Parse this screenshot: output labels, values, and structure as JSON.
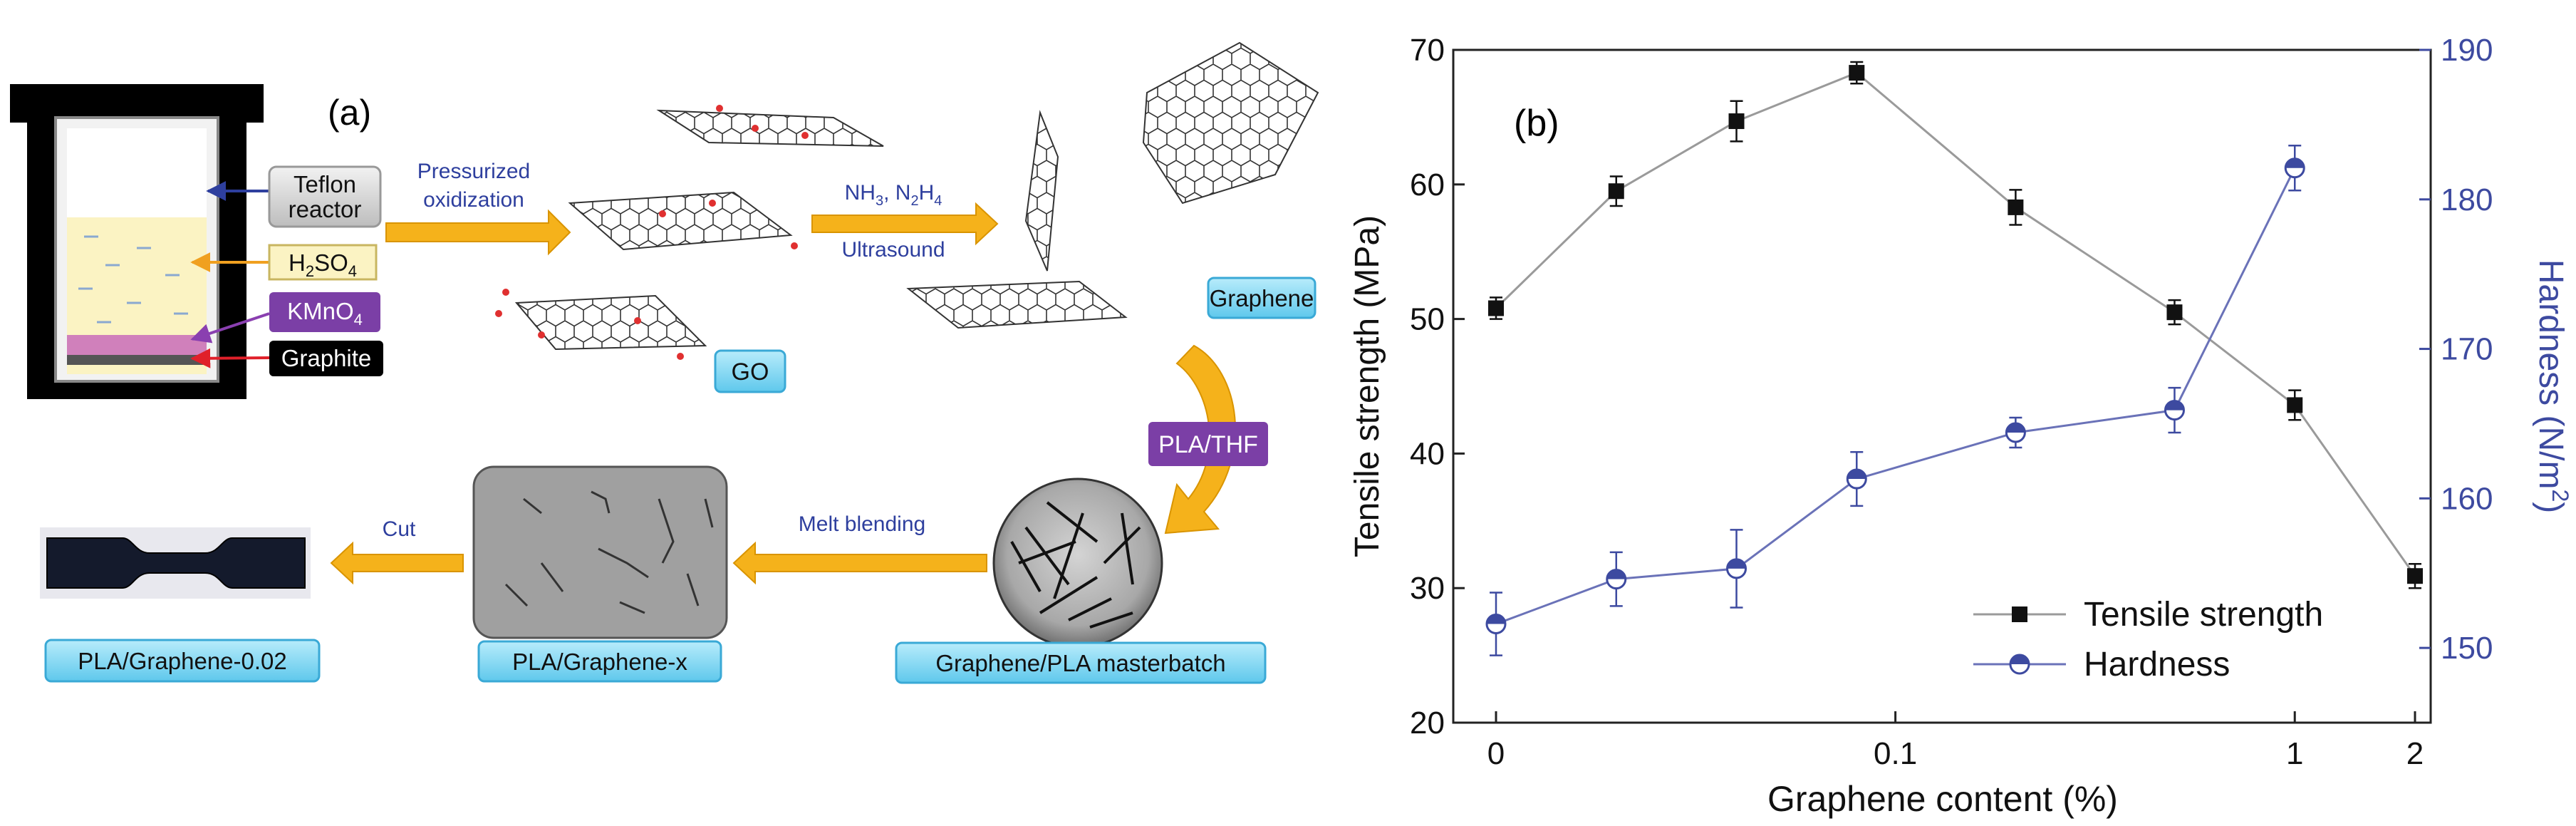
{
  "panel_a": {
    "label": "(a)",
    "reactor_labels": [
      "Teflon",
      "reactor"
    ],
    "h2so4": {
      "main": "H",
      "sub1": "2",
      "mid": "SO",
      "sub2": "4"
    },
    "kmno4": {
      "main": "KMnO",
      "sub": "4"
    },
    "graphite": "Graphite",
    "pressurized": [
      "Pressurized",
      "oxidization"
    ],
    "go": "GO",
    "reagents": {
      "nh": "NH",
      "sub1": "3",
      "sep": ", N",
      "sub2": "2",
      "h": "H",
      "sub3": "4"
    },
    "ultrasound": "Ultrasound",
    "graphene": "Graphene",
    "pla_thf": "PLA/THF",
    "melt_blending": "Melt blending",
    "cut": "Cut",
    "masterbatch": "Graphene/PLA masterbatch",
    "pla_graphene_x": "PLA/Graphene-x",
    "pla_graphene_002": "PLA/Graphene-0.02",
    "colors": {
      "arrow": "#f5b21b",
      "arrow_edge": "#d99400",
      "cyan_box": "#7fd6f2",
      "cyan_edge": "#3aa9d6",
      "purple": "#7b3fa6",
      "reactor_liquid": "#fbf3c3",
      "arrow_blue": "#2e3f9e",
      "arrow_orange": "#f0a020",
      "arrow_purple": "#8a3fb0",
      "arrow_red": "#e0202a",
      "text_blue": "#2e3f9e"
    }
  },
  "chart_data": {
    "type": "line",
    "label": "(b)",
    "xlabel": "Graphene content (%)",
    "ylabel_left": "Tensile strength (MPa)",
    "ylabel_right_main": "Hardness (N/m",
    "ylabel_right_sup": "2",
    "ylabel_right_close": ")",
    "x_scale": "log",
    "x_ticks": [
      {
        "value": 0.01,
        "label": "0"
      },
      {
        "value": 0.1,
        "label": "0.1"
      },
      {
        "value": 1,
        "label": "1"
      },
      {
        "value": 2,
        "label": "2"
      }
    ],
    "ylim_left": [
      20,
      70
    ],
    "yticks_left": [
      20,
      30,
      40,
      50,
      60,
      70
    ],
    "ylim_right": [
      145,
      190
    ],
    "yticks_right": [
      150,
      160,
      170,
      180,
      190
    ],
    "legend_position": "bottom-right",
    "right_axis_color": "#3d4aa0",
    "series": [
      {
        "name": "Tensile strength",
        "axis": "left",
        "marker": "square",
        "color": "#111111",
        "line_color": "#9a9a9a",
        "x": [
          0.01,
          0.02,
          0.04,
          0.08,
          0.2,
          0.5,
          1,
          2
        ],
        "values": [
          50.8,
          59.5,
          64.7,
          68.3,
          58.3,
          50.5,
          43.6,
          30.9
        ],
        "errors": [
          0.8,
          1.1,
          1.5,
          0.8,
          1.3,
          0.9,
          1.1,
          0.9
        ]
      },
      {
        "name": "Hardness",
        "axis": "right",
        "marker": "half-circle",
        "color": "#3d4aa0",
        "line_color": "#6a72b8",
        "x": [
          0.01,
          0.02,
          0.04,
          0.08,
          0.2,
          0.5,
          1
        ],
        "values": [
          151.6,
          154.6,
          155.3,
          161.3,
          164.4,
          165.9,
          182.1
        ],
        "errors": [
          2.1,
          1.8,
          2.6,
          1.8,
          1.0,
          1.5,
          1.5
        ]
      }
    ]
  }
}
